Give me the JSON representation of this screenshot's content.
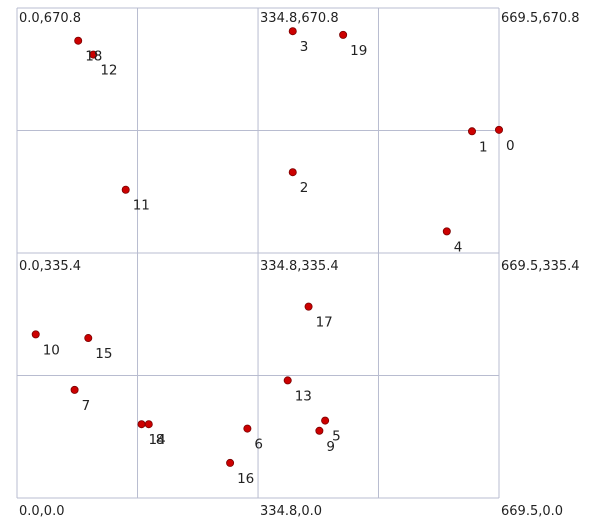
{
  "chart_data": {
    "type": "scatter",
    "title": "",
    "xlabel": "",
    "ylabel": "",
    "xlim": [
      0,
      669.5
    ],
    "ylim": [
      670.8,
      0
    ],
    "grid": true,
    "grid_x": [
      0,
      167.4,
      334.8,
      502.1,
      669.5
    ],
    "grid_y": [
      0,
      167.7,
      335.4,
      503.1,
      670.8
    ],
    "colors": {
      "point": "#cc0000",
      "point_stroke": "#7a0000",
      "grid": "#b8bcd0"
    },
    "corner_labels": [
      {
        "x": 0,
        "y": 0,
        "text": "0.0,0.0"
      },
      {
        "x": 334.8,
        "y": 0,
        "text": "334.8,0.0"
      },
      {
        "x": 669.5,
        "y": 0,
        "text": "669.5,0.0"
      },
      {
        "x": 0,
        "y": 335.4,
        "text": "0.0,335.4"
      },
      {
        "x": 334.8,
        "y": 335.4,
        "text": "334.8,335.4"
      },
      {
        "x": 669.5,
        "y": 335.4,
        "text": "669.5,335.4"
      },
      {
        "x": 0,
        "y": 670.8,
        "text": "0.0,670.8"
      },
      {
        "x": 334.8,
        "y": 670.8,
        "text": "334.8,670.8"
      },
      {
        "x": 669.5,
        "y": 670.8,
        "text": "669.5,670.8"
      }
    ],
    "points": [
      {
        "id": "0",
        "x": 669.5,
        "y": 504
      },
      {
        "id": "1",
        "x": 632,
        "y": 502
      },
      {
        "id": "2",
        "x": 383,
        "y": 446
      },
      {
        "id": "3",
        "x": 383,
        "y": 639
      },
      {
        "id": "4",
        "x": 597,
        "y": 365
      },
      {
        "id": "5",
        "x": 428,
        "y": 106
      },
      {
        "id": "6",
        "x": 320,
        "y": 95
      },
      {
        "id": "7",
        "x": 80,
        "y": 148
      },
      {
        "id": "8",
        "x": 183,
        "y": 101
      },
      {
        "id": "9",
        "x": 420,
        "y": 92
      },
      {
        "id": "10",
        "x": 26,
        "y": 224
      },
      {
        "id": "11",
        "x": 151,
        "y": 422
      },
      {
        "id": "12",
        "x": 106,
        "y": 607
      },
      {
        "id": "13",
        "x": 376,
        "y": 161
      },
      {
        "id": "14",
        "x": 173,
        "y": 101
      },
      {
        "id": "15",
        "x": 99,
        "y": 219
      },
      {
        "id": "16",
        "x": 296,
        "y": 48
      },
      {
        "id": "17",
        "x": 405,
        "y": 262
      },
      {
        "id": "18",
        "x": 85,
        "y": 626
      },
      {
        "id": "19",
        "x": 453,
        "y": 634
      }
    ]
  }
}
